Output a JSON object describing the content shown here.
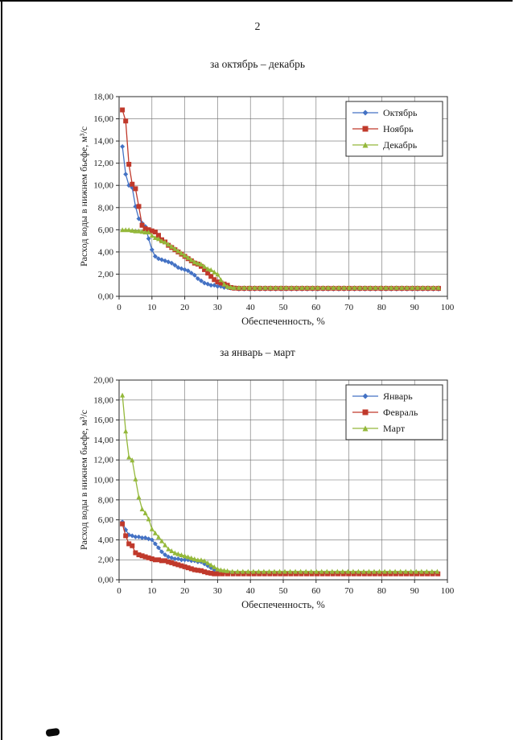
{
  "page": {
    "number": "2"
  },
  "chart_data": [
    {
      "type": "line",
      "title": "за октябрь – декабрь",
      "xlabel": "Обеспеченность, %",
      "ylabel": "Расход воды в нижнем бьефе, м³/с",
      "xlim": [
        0,
        100
      ],
      "ylim": [
        0,
        18
      ],
      "xstep": 10,
      "ystep": 2,
      "grid": true,
      "legend_position": "top-right",
      "tick_format": "comma-decimal",
      "series": [
        {
          "name": "Октябрь",
          "color": "#4472c4",
          "marker": "diamond",
          "points": [
            [
              1,
              13.5
            ],
            [
              2,
              11.0
            ],
            [
              3,
              10.0
            ],
            [
              4,
              9.8
            ],
            [
              5,
              8.1
            ],
            [
              6,
              7.0
            ],
            [
              7,
              6.6
            ],
            [
              8,
              6.3
            ],
            [
              9,
              5.2
            ],
            [
              10,
              4.2
            ],
            [
              11,
              3.6
            ],
            [
              12,
              3.4
            ],
            [
              13,
              3.3
            ],
            [
              14,
              3.2
            ],
            [
              15,
              3.1
            ],
            [
              16,
              3.0
            ],
            [
              17,
              2.8
            ],
            [
              18,
              2.6
            ],
            [
              19,
              2.5
            ],
            [
              20,
              2.4
            ],
            [
              21,
              2.3
            ],
            [
              22,
              2.1
            ],
            [
              23,
              1.9
            ],
            [
              24,
              1.6
            ],
            [
              25,
              1.4
            ],
            [
              26,
              1.2
            ],
            [
              27,
              1.1
            ],
            [
              28,
              1.0
            ],
            [
              29,
              1.0
            ],
            [
              30,
              0.9
            ],
            [
              31,
              0.9
            ],
            [
              32,
              0.8
            ],
            [
              33,
              0.8
            ],
            [
              34,
              0.75
            ],
            [
              35,
              0.7
            ]
          ],
          "flat_tail": {
            "x_start": 36.5,
            "x_end": 98.2,
            "x_step": 1.6,
            "y": 0.65
          }
        },
        {
          "name": "Ноябрь",
          "color": "#c0392b",
          "marker": "square",
          "points": [
            [
              1,
              16.8
            ],
            [
              2,
              15.8
            ],
            [
              3,
              11.9
            ],
            [
              4,
              10.1
            ],
            [
              5,
              9.7
            ],
            [
              6,
              8.1
            ],
            [
              7,
              6.4
            ],
            [
              8,
              6.1
            ],
            [
              9,
              6.0
            ],
            [
              10,
              5.9
            ],
            [
              11,
              5.8
            ],
            [
              12,
              5.5
            ],
            [
              13,
              5.1
            ],
            [
              14,
              4.9
            ],
            [
              15,
              4.6
            ],
            [
              16,
              4.4
            ],
            [
              17,
              4.2
            ],
            [
              18,
              4.0
            ],
            [
              19,
              3.8
            ],
            [
              20,
              3.6
            ],
            [
              21,
              3.4
            ],
            [
              22,
              3.2
            ],
            [
              23,
              3.0
            ],
            [
              24,
              2.9
            ],
            [
              25,
              2.7
            ],
            [
              26,
              2.4
            ],
            [
              27,
              2.1
            ],
            [
              28,
              1.8
            ],
            [
              29,
              1.5
            ],
            [
              30,
              1.3
            ],
            [
              31,
              1.2
            ],
            [
              32,
              1.1
            ],
            [
              33,
              1.0
            ],
            [
              34,
              0.8
            ],
            [
              35,
              0.75
            ]
          ],
          "flat_tail": {
            "x_start": 36.5,
            "x_end": 98.2,
            "x_step": 1.6,
            "y": 0.72
          }
        },
        {
          "name": "Декабрь",
          "color": "#94b83a",
          "marker": "triangle",
          "points": [
            [
              1,
              6.0
            ],
            [
              2,
              6.0
            ],
            [
              3,
              6.0
            ],
            [
              4,
              5.95
            ],
            [
              5,
              5.9
            ],
            [
              6,
              5.9
            ],
            [
              7,
              5.85
            ],
            [
              8,
              5.8
            ],
            [
              9,
              5.8
            ],
            [
              10,
              5.5
            ],
            [
              11,
              5.3
            ],
            [
              12,
              5.2
            ],
            [
              13,
              5.0
            ],
            [
              14,
              4.9
            ],
            [
              15,
              4.7
            ],
            [
              16,
              4.5
            ],
            [
              17,
              4.3
            ],
            [
              18,
              4.1
            ],
            [
              19,
              3.9
            ],
            [
              20,
              3.7
            ],
            [
              21,
              3.5
            ],
            [
              22,
              3.3
            ],
            [
              23,
              3.1
            ],
            [
              24,
              3.0
            ],
            [
              25,
              2.9
            ],
            [
              26,
              2.7
            ],
            [
              27,
              2.5
            ],
            [
              28,
              2.4
            ],
            [
              29,
              2.2
            ],
            [
              30,
              2.0
            ],
            [
              31,
              1.5
            ],
            [
              32,
              1.1
            ],
            [
              33,
              0.9
            ],
            [
              34,
              0.85
            ],
            [
              35,
              0.8
            ]
          ],
          "flat_tail": {
            "x_start": 36.5,
            "x_end": 98.2,
            "x_step": 1.6,
            "y": 0.8
          }
        }
      ]
    },
    {
      "type": "line",
      "title": "за январь – март",
      "xlabel": "Обеспеченность, %",
      "ylabel": "Расход воды в нижнем бьефе, м³/с",
      "xlim": [
        0,
        100
      ],
      "ylim": [
        0,
        20
      ],
      "xstep": 10,
      "ystep": 2,
      "grid": true,
      "legend_position": "top-right",
      "tick_format": "comma-decimal",
      "series": [
        {
          "name": "Январь",
          "color": "#4472c4",
          "marker": "diamond",
          "points": [
            [
              1,
              5.8
            ],
            [
              2,
              5.0
            ],
            [
              3,
              4.5
            ],
            [
              4,
              4.4
            ],
            [
              5,
              4.3
            ],
            [
              6,
              4.3
            ],
            [
              7,
              4.2
            ],
            [
              8,
              4.2
            ],
            [
              9,
              4.1
            ],
            [
              10,
              4.0
            ],
            [
              11,
              3.6
            ],
            [
              12,
              3.2
            ],
            [
              13,
              2.8
            ],
            [
              14,
              2.5
            ],
            [
              15,
              2.3
            ],
            [
              16,
              2.2
            ],
            [
              17,
              2.1
            ],
            [
              18,
              2.1
            ],
            [
              19,
              2.0
            ],
            [
              20,
              2.0
            ],
            [
              21,
              2.0
            ],
            [
              22,
              1.9
            ],
            [
              23,
              1.9
            ],
            [
              24,
              1.8
            ],
            [
              25,
              1.8
            ],
            [
              26,
              1.6
            ],
            [
              27,
              1.4
            ],
            [
              28,
              1.2
            ],
            [
              29,
              1.0
            ],
            [
              30,
              0.9
            ],
            [
              31,
              0.85
            ],
            [
              32,
              0.8
            ],
            [
              33,
              0.75
            ]
          ],
          "flat_tail": {
            "x_start": 34.5,
            "x_end": 98.2,
            "x_step": 1.6,
            "y": 0.7
          }
        },
        {
          "name": "Февраль",
          "color": "#c0392b",
          "marker": "square",
          "points": [
            [
              1,
              5.6
            ],
            [
              2,
              4.4
            ],
            [
              3,
              3.6
            ],
            [
              4,
              3.4
            ],
            [
              5,
              2.7
            ],
            [
              6,
              2.5
            ],
            [
              7,
              2.4
            ],
            [
              8,
              2.3
            ],
            [
              9,
              2.2
            ],
            [
              10,
              2.1
            ],
            [
              11,
              2.0
            ],
            [
              12,
              2.0
            ],
            [
              13,
              1.9
            ],
            [
              14,
              1.9
            ],
            [
              15,
              1.8
            ],
            [
              16,
              1.7
            ],
            [
              17,
              1.6
            ],
            [
              18,
              1.5
            ],
            [
              19,
              1.4
            ],
            [
              20,
              1.3
            ],
            [
              21,
              1.2
            ],
            [
              22,
              1.1
            ],
            [
              23,
              1.0
            ],
            [
              24,
              0.95
            ],
            [
              25,
              0.9
            ],
            [
              26,
              0.8
            ],
            [
              27,
              0.7
            ],
            [
              28,
              0.65
            ],
            [
              29,
              0.6
            ],
            [
              30,
              0.6
            ]
          ],
          "flat_tail": {
            "x_start": 31.5,
            "x_end": 98.2,
            "x_step": 1.6,
            "y": 0.6
          }
        },
        {
          "name": "Март",
          "color": "#94b83a",
          "marker": "triangle",
          "points": [
            [
              1,
              18.5
            ],
            [
              2,
              14.9
            ],
            [
              3,
              12.3
            ],
            [
              4,
              12.0
            ],
            [
              5,
              10.1
            ],
            [
              6,
              8.3
            ],
            [
              7,
              7.1
            ],
            [
              8,
              6.7
            ],
            [
              9,
              6.1
            ],
            [
              10,
              5.1
            ],
            [
              11,
              4.7
            ],
            [
              12,
              4.3
            ],
            [
              13,
              3.9
            ],
            [
              14,
              3.5
            ],
            [
              15,
              3.1
            ],
            [
              16,
              2.9
            ],
            [
              17,
              2.7
            ],
            [
              18,
              2.6
            ],
            [
              19,
              2.5
            ],
            [
              20,
              2.4
            ],
            [
              21,
              2.3
            ],
            [
              22,
              2.2
            ],
            [
              23,
              2.1
            ],
            [
              24,
              2.0
            ],
            [
              25,
              2.0
            ],
            [
              26,
              1.9
            ],
            [
              27,
              1.7
            ],
            [
              28,
              1.5
            ],
            [
              29,
              1.3
            ],
            [
              30,
              1.1
            ],
            [
              31,
              1.0
            ],
            [
              32,
              0.95
            ],
            [
              33,
              0.9
            ]
          ],
          "flat_tail": {
            "x_start": 34.5,
            "x_end": 98.2,
            "x_step": 1.6,
            "y": 0.85
          }
        }
      ]
    }
  ]
}
